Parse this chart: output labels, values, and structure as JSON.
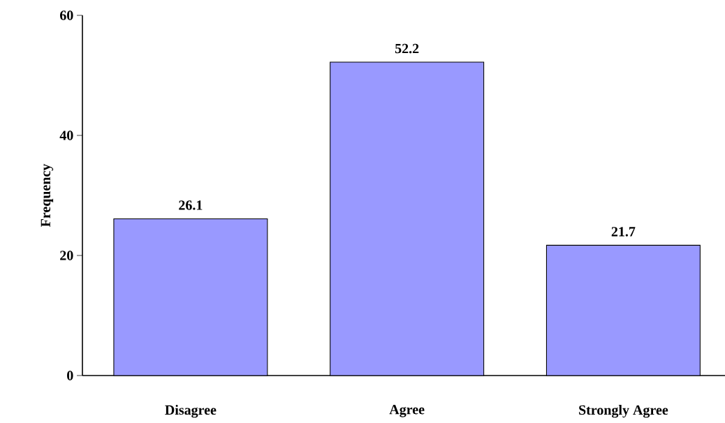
{
  "chart_data": {
    "type": "bar",
    "ylabel": "Frequency",
    "categories": [
      "Disagree",
      "Agree",
      "Strongly Agree"
    ],
    "values": [
      26.1,
      52.2,
      21.7
    ],
    "color": "#9999ff",
    "ylim": [
      0,
      60
    ],
    "yticks": [
      0,
      20,
      40,
      60
    ],
    "data_labels": true,
    "grid": false
  }
}
